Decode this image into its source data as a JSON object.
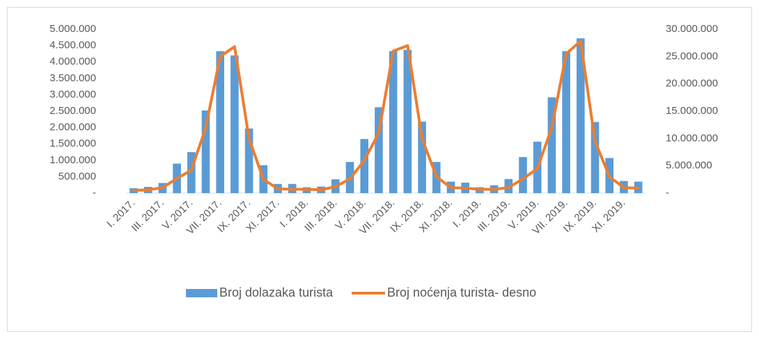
{
  "chart_data": {
    "type": "bar-line",
    "categories": [
      "I. 2017.",
      null,
      "III. 2017.",
      null,
      "V. 2017.",
      null,
      "VII. 2017.",
      null,
      "IX. 2017.",
      null,
      "XI. 2017.",
      null,
      "I. 2018.",
      null,
      "III. 2018.",
      null,
      "V. 2018.",
      null,
      "VII. 2018.",
      null,
      "IX. 2018.",
      null,
      "XI. 2018.",
      null,
      "I. 2019.",
      null,
      "III. 2019.",
      null,
      "V. 2019.",
      null,
      "VII. 2019.",
      null,
      "IX. 2019.",
      null,
      "XI. 2019.",
      null
    ],
    "series": [
      {
        "name": "Broj dolazaka turista",
        "color": "#5b9bd5",
        "type": "bar",
        "values": [
          150000,
          190000,
          310000,
          900000,
          1250000,
          2520000,
          4330000,
          4200000,
          1970000,
          850000,
          280000,
          280000,
          180000,
          200000,
          420000,
          950000,
          1650000,
          2620000,
          4330000,
          4370000,
          2180000,
          950000,
          350000,
          320000,
          180000,
          240000,
          430000,
          1100000,
          1570000,
          2920000,
          4330000,
          4720000,
          2170000,
          1070000,
          370000,
          350000
        ]
      },
      {
        "name": "Broj noćenja turista- desno",
        "color": "#ed7d31",
        "type": "line",
        "axis": "y2",
        "values": [
          500000,
          600000,
          1000000,
          2700000,
          4200000,
          12000000,
          25000000,
          26800000,
          10000000,
          2500000,
          800000,
          700000,
          700000,
          600000,
          1200000,
          2600000,
          6000000,
          11000000,
          26000000,
          27000000,
          10000000,
          3000000,
          1000000,
          900000,
          700000,
          700000,
          1000000,
          2600000,
          4500000,
          12000000,
          25500000,
          27800000,
          9500000,
          3000000,
          1000000,
          900000
        ]
      }
    ],
    "ylim": [
      0,
      5000000
    ],
    "yticks": [
      {
        "value": 0,
        "label": "-"
      },
      {
        "value": 500000,
        "label": "500.000"
      },
      {
        "value": 1000000,
        "label": "1.000.000"
      },
      {
        "value": 1500000,
        "label": "1.500.000"
      },
      {
        "value": 2000000,
        "label": "2.000.000"
      },
      {
        "value": 2500000,
        "label": "2.500.000"
      },
      {
        "value": 3000000,
        "label": "3.000.000"
      },
      {
        "value": 3500000,
        "label": "3.500.000"
      },
      {
        "value": 4000000,
        "label": "4.000.000"
      },
      {
        "value": 4500000,
        "label": "4.500.000"
      },
      {
        "value": 5000000,
        "label": "5.000.000"
      }
    ],
    "y2lim": [
      0,
      30000000
    ],
    "y2ticks": [
      {
        "value": 0,
        "label": "-"
      },
      {
        "value": 5000000,
        "label": "5.000.000"
      },
      {
        "value": 10000000,
        "label": "10.000.000"
      },
      {
        "value": 15000000,
        "label": "15.000.000"
      },
      {
        "value": 20000000,
        "label": "20.000.000"
      },
      {
        "value": 25000000,
        "label": "25.000.000"
      },
      {
        "value": 30000000,
        "label": "30.000.000"
      }
    ],
    "grid": false,
    "legend": "bottom"
  }
}
